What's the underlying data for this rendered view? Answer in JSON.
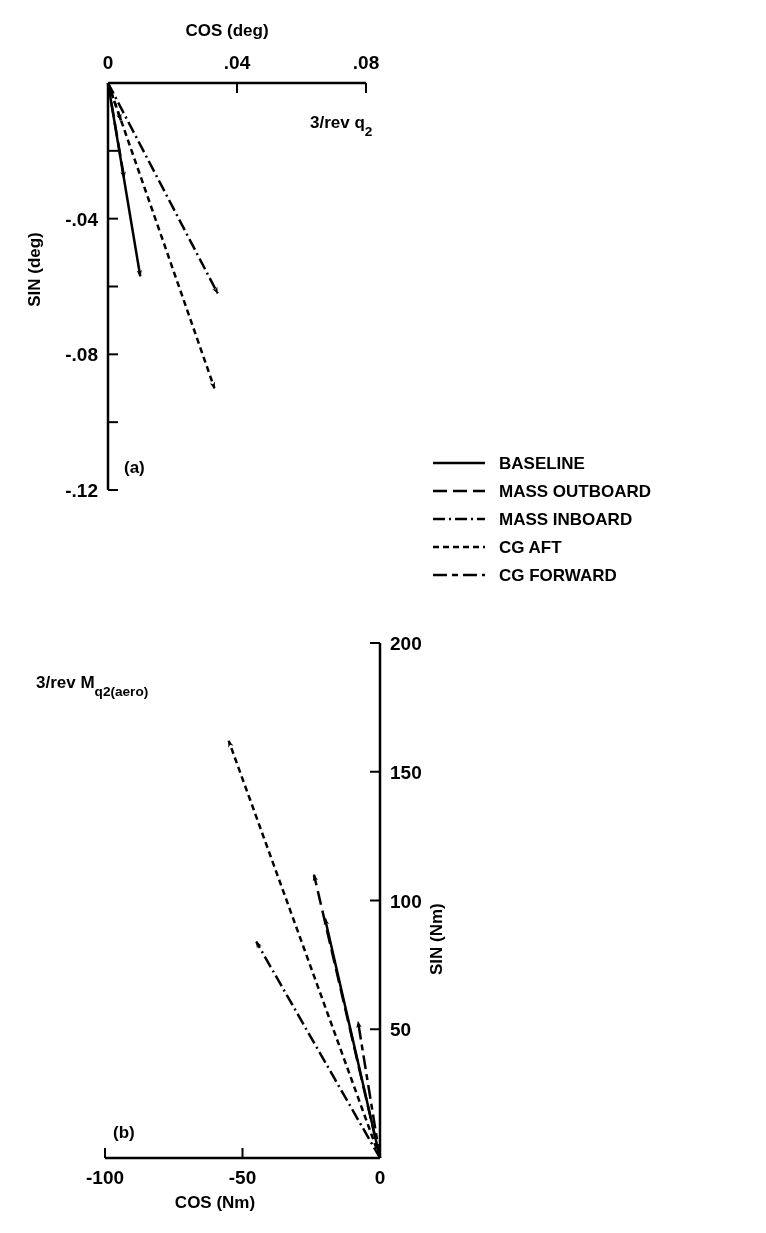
{
  "chart_data": [
    {
      "type": "line",
      "title": "3/rev q$_{2}$",
      "xlabel": "COS (deg)",
      "ylabel": "SIN (deg)",
      "xlim": [
        0,
        0.08
      ],
      "xticks": [
        {
          "value": 0,
          "label": "0"
        },
        {
          "value": 0.04,
          "label": ".04"
        },
        {
          "value": 0.08,
          "label": ".08"
        }
      ],
      "ylim": [
        -0.12,
        0
      ],
      "yticks": [
        {
          "value": -0.02,
          "label": null
        },
        {
          "value": -0.04,
          "label": "-.04"
        },
        {
          "value": -0.06,
          "label": null
        },
        {
          "value": -0.08,
          "label": "-.08"
        },
        {
          "value": -0.1,
          "label": null
        },
        {
          "value": -0.12,
          "label": "-.12"
        }
      ],
      "annotations": [
        "(a)"
      ],
      "legend": "right",
      "marker": "none",
      "series": [
        {
          "name": "BASELINE",
          "color": "#000000",
          "line_style": "solid",
          "x": [
            0,
            0.01
          ],
          "values": [
            0,
            -0.057
          ]
        },
        {
          "name": "MASS OUTBOARD",
          "color": "#000000",
          "line_style": "longdash",
          "x": [
            0,
            0.005
          ],
          "values": [
            0,
            -0.028
          ]
        },
        {
          "name": "MASS INBOARD",
          "color": "#000000",
          "line_style": "dashdot",
          "x": [
            0,
            0.034
          ],
          "values": [
            0,
            -0.062
          ]
        },
        {
          "name": "CG AFT",
          "color": "#000000",
          "line_style": "dashed",
          "x": [
            0,
            0.033
          ],
          "values": [
            0,
            -0.09
          ]
        },
        {
          "name": "CG FORWARD",
          "color": "#000000",
          "line_style": "longshort",
          "x": [
            0,
            0.004
          ],
          "values": [
            0,
            -0.011
          ]
        }
      ]
    },
    {
      "type": "line",
      "title": "3/rev M$_{q2(aero)}$",
      "xlabel": "COS (Nm)",
      "ylabel": "SIN (Nm)",
      "xlim": [
        -100,
        0
      ],
      "xticks": [
        -100,
        -50,
        0
      ],
      "ylim": [
        0,
        200
      ],
      "yticks": [
        50,
        100,
        150,
        200
      ],
      "annotations": [
        "(b)"
      ],
      "legend": false,
      "marker": "none",
      "series": [
        {
          "color": "#000000",
          "line_style": "solid",
          "x": [
            0,
            -20
          ],
          "values": [
            0,
            93
          ]
        },
        {
          "color": "#000000",
          "line_style": "longdash",
          "x": [
            0,
            -24
          ],
          "values": [
            0,
            110
          ]
        },
        {
          "color": "#000000",
          "line_style": "dashdot",
          "x": [
            0,
            -45
          ],
          "values": [
            0,
            84
          ]
        },
        {
          "color": "#000000",
          "line_style": "dashed",
          "x": [
            0,
            -55
          ],
          "values": [
            0,
            162
          ]
        },
        {
          "color": "#000000",
          "line_style": "longshort",
          "x": [
            0,
            -8
          ],
          "values": [
            0,
            53
          ]
        }
      ]
    }
  ]
}
